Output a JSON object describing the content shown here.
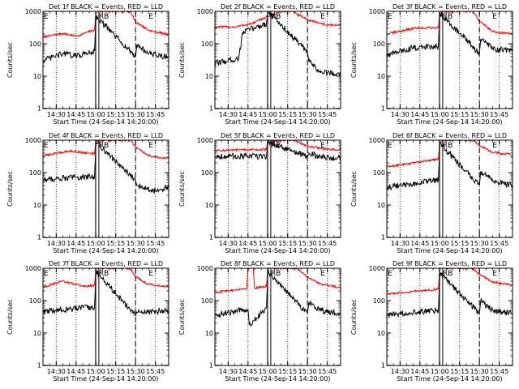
{
  "figure": {
    "xlabel": "Start Time (24-Sep-14 14:20:00)",
    "ylabel": "Counts/sec"
  },
  "chart_data": [
    {
      "type": "line",
      "title": "Det 1f BLACK = Events, RED = LLD",
      "xlabel": "Start Time (24-Sep-14 14:20:00)",
      "ylabel": "Counts/sec",
      "yscale": "log",
      "xlim": [
        "14:20",
        "15:55"
      ],
      "ylim": [
        1,
        1000
      ],
      "x_ticks": [
        "14:30",
        "14:45",
        "15:00",
        "15:15",
        "15:30",
        "15:45"
      ],
      "y_ticks": [
        "1",
        "10",
        "100",
        "1000"
      ],
      "markers": [
        {
          "label": "E",
          "x": "14:20"
        },
        {
          "label": "RB",
          "x": "15:01"
        },
        {
          "label": "E",
          "x": "15:30"
        }
      ],
      "series": [
        {
          "name": "RED = LLD",
          "color": "#ff0000",
          "x": [
            "14:20",
            "14:35",
            "14:45",
            "14:59",
            "15:00",
            "15:26",
            "15:30",
            "15:40",
            "15:55"
          ],
          "y": [
            160,
            210,
            170,
            270,
            1000,
            1000,
            480,
            260,
            190
          ]
        },
        {
          "name": "BLACK = Events",
          "color": "#000000",
          "x": [
            "14:20",
            "14:35",
            "14:45",
            "14:59",
            "15:00",
            "15:30",
            "15:31",
            "15:40",
            "15:55"
          ],
          "y": [
            30,
            50,
            42,
            60,
            700,
            40,
            95,
            50,
            38
          ]
        }
      ]
    },
    {
      "type": "line",
      "title": "Det 2f BLACK = Events, RED = LLD",
      "xlabel": "Start Time (24-Sep-14 14:20:00)",
      "ylabel": "Counts/sec",
      "yscale": "log",
      "xlim": [
        "14:20",
        "15:55"
      ],
      "ylim": [
        1,
        1000
      ],
      "x_ticks": [
        "14:30",
        "14:45",
        "15:00",
        "15:15",
        "15:30",
        "15:45"
      ],
      "y_ticks": [
        "1",
        "10",
        "100",
        "1000"
      ],
      "markers": [
        {
          "label": "RB",
          "x": "15:01"
        },
        {
          "label": "E",
          "x": "15:30"
        }
      ],
      "series": [
        {
          "name": "RED = LLD",
          "color": "#ff0000",
          "x": [
            "14:20",
            "14:35",
            "14:48",
            "15:00",
            "15:10",
            "15:18",
            "15:30",
            "15:45",
            "15:55"
          ],
          "y": [
            330,
            330,
            420,
            700,
            1000,
            1000,
            550,
            380,
            370
          ]
        },
        {
          "name": "BLACK = Events",
          "color": "#000000",
          "x": [
            "14:20",
            "14:38",
            "14:41",
            "14:59",
            "15:00",
            "15:30",
            "15:31",
            "15:40",
            "15:55"
          ],
          "y": [
            25,
            35,
            230,
            420,
            1000,
            55,
            28,
            13,
            12
          ]
        }
      ]
    },
    {
      "type": "line",
      "title": "Det 3f BLACK = Events, RED = LLD",
      "xlabel": "Start Time (24-Sep-14 14:20:00)",
      "ylabel": "Counts/sec",
      "yscale": "log",
      "xlim": [
        "14:20",
        "15:55"
      ],
      "ylim": [
        1,
        1000
      ],
      "x_ticks": [
        "14:30",
        "14:45",
        "15:00",
        "15:15",
        "15:30",
        "15:45"
      ],
      "y_ticks": [
        "1",
        "10",
        "100",
        "1000"
      ],
      "markers": [
        {
          "label": "E",
          "x": "14:20"
        },
        {
          "label": "RB",
          "x": "15:01"
        },
        {
          "label": "E",
          "x": "15:30"
        }
      ],
      "series": [
        {
          "name": "RED = LLD",
          "color": "#ff0000",
          "x": [
            "14:20",
            "14:40",
            "14:59",
            "15:00",
            "15:25",
            "15:30",
            "15:40",
            "15:55"
          ],
          "y": [
            200,
            300,
            320,
            1000,
            1000,
            500,
            240,
            200
          ]
        },
        {
          "name": "BLACK = Events",
          "color": "#000000",
          "x": [
            "14:20",
            "14:40",
            "14:59",
            "15:00",
            "15:30",
            "15:31",
            "15:40",
            "15:55"
          ],
          "y": [
            45,
            75,
            85,
            900,
            50,
            140,
            70,
            60
          ]
        }
      ]
    },
    {
      "type": "line",
      "title": "Det 4f BLACK = Events, RED = LLD",
      "xlabel": "Start Time (24-Sep-14 14:20:00)",
      "ylabel": "Counts/sec",
      "yscale": "log",
      "xlim": [
        "14:20",
        "15:55"
      ],
      "ylim": [
        1,
        1000
      ],
      "x_ticks": [
        "14:30",
        "14:45",
        "15:00",
        "15:15",
        "15:30",
        "15:45"
      ],
      "y_ticks": [
        "1",
        "10",
        "100",
        "1000"
      ],
      "markers": [
        {
          "label": "E",
          "x": "14:20"
        },
        {
          "label": "RB",
          "x": "15:01"
        },
        {
          "label": "E",
          "x": "15:30"
        }
      ],
      "series": [
        {
          "name": "RED = LLD",
          "color": "#ff0000",
          "x": [
            "14:20",
            "14:40",
            "14:59",
            "15:00",
            "15:26",
            "15:30",
            "15:40",
            "15:55"
          ],
          "y": [
            330,
            470,
            380,
            1000,
            1000,
            600,
            330,
            270
          ]
        },
        {
          "name": "BLACK = Events",
          "color": "#000000",
          "x": [
            "14:20",
            "14:40",
            "14:59",
            "15:00",
            "15:30",
            "15:31",
            "15:45",
            "15:55"
          ],
          "y": [
            60,
            70,
            75,
            900,
            55,
            40,
            28,
            35
          ]
        }
      ]
    },
    {
      "type": "line",
      "title": "Det 5f BLACK = Events, RED = LLD",
      "xlabel": "Start Time (24-Sep-14 14:20:00)",
      "ylabel": "Counts/sec",
      "yscale": "log",
      "xlim": [
        "14:20",
        "15:55"
      ],
      "ylim": [
        1,
        1000
      ],
      "x_ticks": [
        "14:30",
        "14:45",
        "15:00",
        "15:15",
        "15:30",
        "15:45"
      ],
      "y_ticks": [
        "1",
        "10",
        "100",
        "1000"
      ],
      "markers": [
        {
          "label": "RB",
          "x": "15:01"
        },
        {
          "label": "E",
          "x": "15:30"
        }
      ],
      "series": [
        {
          "name": "RED = LLD",
          "color": "#ff0000",
          "x": [
            "14:20",
            "14:59",
            "15:00",
            "15:05",
            "15:10",
            "15:20",
            "15:30",
            "15:45",
            "15:55"
          ],
          "y": [
            480,
            520,
            1000,
            900,
            1000,
            1000,
            650,
            530,
            500
          ]
        },
        {
          "name": "BLACK = Events",
          "color": "#000000",
          "x": [
            "14:20",
            "14:59",
            "15:00",
            "15:30",
            "15:31",
            "15:40",
            "15:55"
          ],
          "y": [
            320,
            320,
            900,
            300,
            400,
            300,
            280
          ]
        }
      ]
    },
    {
      "type": "line",
      "title": "Det 6f BLACK = Events, RED = LLD",
      "xlabel": "Start Time (24-Sep-14 14:20:00)",
      "ylabel": "Counts/sec",
      "yscale": "log",
      "xlim": [
        "14:20",
        "15:55"
      ],
      "ylim": [
        1,
        1000
      ],
      "x_ticks": [
        "14:30",
        "14:45",
        "15:00",
        "15:15",
        "15:30",
        "15:45"
      ],
      "y_ticks": [
        "1",
        "10",
        "100",
        "1000"
      ],
      "markers": [
        {
          "label": "E",
          "x": "14:20"
        },
        {
          "label": "RB",
          "x": "15:01"
        },
        {
          "label": "E",
          "x": "15:30"
        }
      ],
      "series": [
        {
          "name": "RED = LLD",
          "color": "#ff0000",
          "x": [
            "14:20",
            "14:40",
            "14:59",
            "15:00",
            "15:25",
            "15:30",
            "15:40",
            "15:55"
          ],
          "y": [
            150,
            200,
            260,
            1000,
            1000,
            700,
            420,
            360
          ]
        },
        {
          "name": "BLACK = Events",
          "color": "#000000",
          "x": [
            "14:20",
            "14:40",
            "14:59",
            "15:00",
            "15:30",
            "15:31",
            "15:40",
            "15:55"
          ],
          "y": [
            35,
            45,
            60,
            800,
            40,
            110,
            55,
            40
          ]
        }
      ]
    },
    {
      "type": "line",
      "title": "Det 7f BLACK = Events, RED = LLD",
      "xlabel": "Start Time (24-Sep-14 14:20:00)",
      "ylabel": "Counts/sec",
      "yscale": "log",
      "xlim": [
        "14:20",
        "15:55"
      ],
      "ylim": [
        1,
        1000
      ],
      "x_ticks": [
        "14:30",
        "14:45",
        "15:00",
        "15:15",
        "15:30",
        "15:45"
      ],
      "y_ticks": [
        "1",
        "10",
        "100",
        "1000"
      ],
      "markers": [
        {
          "label": "E",
          "x": "14:20"
        },
        {
          "label": "RB",
          "x": "15:01"
        },
        {
          "label": "E",
          "x": "15:30"
        }
      ],
      "series": [
        {
          "name": "RED = LLD",
          "color": "#ff0000",
          "x": [
            "14:20",
            "14:35",
            "14:50",
            "14:59",
            "15:00",
            "15:26",
            "15:30",
            "15:40",
            "15:55"
          ],
          "y": [
            260,
            410,
            270,
            300,
            1000,
            1000,
            550,
            320,
            270
          ]
        },
        {
          "name": "BLACK = Events",
          "color": "#000000",
          "x": [
            "14:20",
            "14:40",
            "14:59",
            "15:00",
            "15:30",
            "15:31",
            "15:40",
            "15:55"
          ],
          "y": [
            45,
            55,
            65,
            800,
            35,
            45,
            45,
            50
          ]
        }
      ]
    },
    {
      "type": "line",
      "title": "Det 8f BLACK = Events, RED = LLD",
      "xlabel": "Start Time (24-Sep-14 14:20:00)",
      "ylabel": "Counts/sec",
      "yscale": "log",
      "xlim": [
        "14:20",
        "15:55"
      ],
      "ylim": [
        1,
        1000
      ],
      "x_ticks": [
        "14:30",
        "14:45",
        "15:00",
        "15:15",
        "15:30",
        "15:45"
      ],
      "y_ticks": [
        "1",
        "10",
        "100",
        "1000"
      ],
      "markers": [
        {
          "label": "RB",
          "x": "15:01"
        },
        {
          "label": "E",
          "x": "15:30"
        }
      ],
      "series": [
        {
          "name": "RED = LLD",
          "color": "#ff0000",
          "x": [
            "14:20",
            "14:40",
            "14:44",
            "14:45",
            "14:49",
            "14:50",
            "14:59",
            "15:00",
            "15:22",
            "15:30",
            "15:40",
            "15:55"
          ],
          "y": [
            180,
            230,
            240,
            1000,
            1000,
            250,
            280,
            1000,
            1000,
            550,
            320,
            260
          ]
        },
        {
          "name": "BLACK = Events",
          "color": "#000000",
          "x": [
            "14:20",
            "14:40",
            "14:45",
            "14:46",
            "14:59",
            "15:00",
            "15:30",
            "15:31",
            "15:40",
            "15:55"
          ],
          "y": [
            35,
            50,
            55,
            18,
            60,
            800,
            40,
            90,
            50,
            40
          ]
        }
      ]
    },
    {
      "type": "line",
      "title": "Det 9f BLACK = Events, RED = LLD",
      "xlabel": "Start Time (24-Sep-14 14:20:00)",
      "ylabel": "Counts/sec",
      "yscale": "log",
      "xlim": [
        "14:20",
        "15:55"
      ],
      "ylim": [
        1,
        1000
      ],
      "x_ticks": [
        "14:30",
        "14:45",
        "15:00",
        "15:15",
        "15:30",
        "15:45"
      ],
      "y_ticks": [
        "1",
        "10",
        "100",
        "1000"
      ],
      "markers": [
        {
          "label": "E",
          "x": "14:20"
        },
        {
          "label": "RB",
          "x": "15:01"
        },
        {
          "label": "E",
          "x": "15:30"
        }
      ],
      "series": [
        {
          "name": "RED = LLD",
          "color": "#ff0000",
          "x": [
            "14:20",
            "14:40",
            "14:59",
            "15:00",
            "15:25",
            "15:30",
            "15:40",
            "15:55"
          ],
          "y": [
            160,
            190,
            230,
            1000,
            1000,
            650,
            380,
            300
          ]
        },
        {
          "name": "BLACK = Events",
          "color": "#000000",
          "x": [
            "14:20",
            "14:40",
            "14:59",
            "15:00",
            "15:30",
            "15:31",
            "15:40",
            "15:55"
          ],
          "y": [
            35,
            45,
            50,
            700,
            40,
            100,
            50,
            40
          ]
        }
      ]
    }
  ]
}
